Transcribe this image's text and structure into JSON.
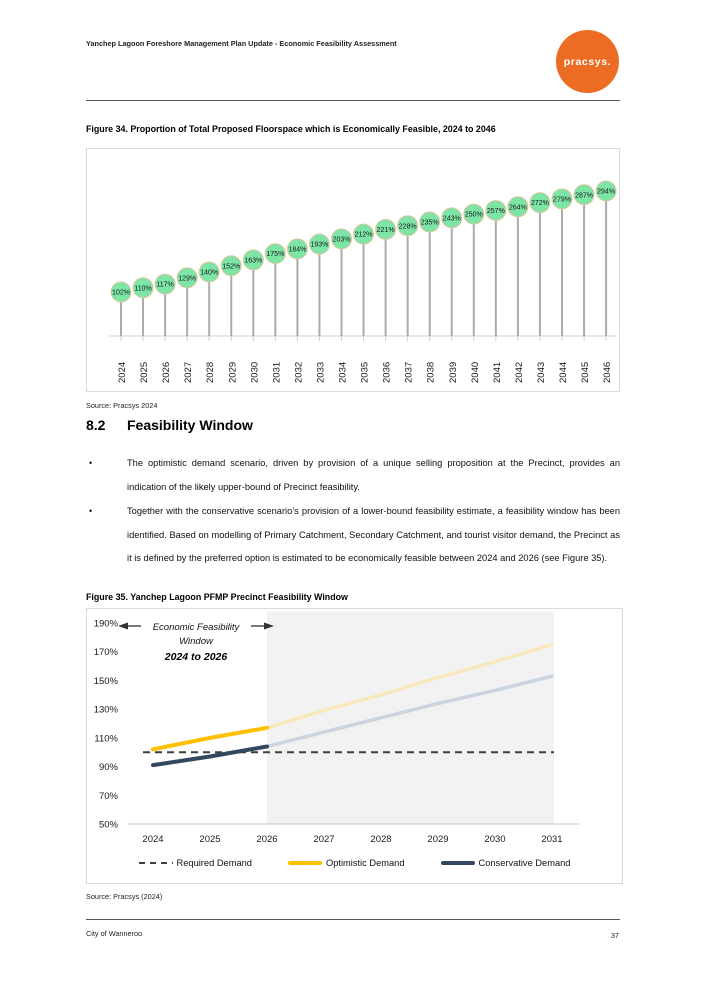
{
  "header": {
    "title": "Yanchep Lagoon Foreshore Management Plan Update - Economic Feasibility Assessment",
    "logo_text": "pracsys."
  },
  "figure34": {
    "caption": "Figure 34. Proportion of Total Proposed Floorspace which is Economically Feasible, 2024 to 2046",
    "source": "Source: Pracsys 2024"
  },
  "section": {
    "number": "8.2",
    "title": "Feasibility Window",
    "bullet_marker": "•",
    "bullets": [
      "The optimistic demand scenario, driven by provision of a unique selling proposition at the Precinct, provides an indication of the likely upper-bound of Precinct feasibility.",
      "Together with the conservative scenario’s provision of a lower-bound feasibility estimate, a feasibility window has been identified. Based on modelling of Primary Catchment, Secondary Catchment, and tourist visitor demand, the Precinct as it is defined by the preferred option is estimated to be economically feasible between 2024 and 2026 (see Figure 35)."
    ]
  },
  "figure35": {
    "caption": "Figure 35. Yanchep Lagoon PFMP Precinct Feasibility Window",
    "source": "Source: Pracsys (2024)"
  },
  "footer": {
    "left": "City of Wanneroo",
    "page": "37"
  },
  "colors": {
    "brand_orange": "#EC6C23",
    "marker_green": "#7DE5A5",
    "marker_border": "#E2C5A4",
    "stem_gray": "#ABABAB",
    "axis_gray": "#CFCFCF",
    "required_dash": "#3F3F3F",
    "optimistic_yellow": "#FFC000",
    "optimistic_faded": "#F8E8BC",
    "conservative_navy": "#33475F",
    "conservative_faded": "#CCD4DF",
    "window_shade": "#F2F2F2"
  },
  "chart_data": [
    {
      "name": "floorspace-lollipop",
      "type": "bar",
      "title": "Proportion of Total Proposed Floorspace which is Economically Feasible, 2024 to 2046",
      "categories": [
        2024,
        2025,
        2026,
        2027,
        2028,
        2029,
        2030,
        2031,
        2032,
        2033,
        2034,
        2035,
        2036,
        2037,
        2038,
        2039,
        2040,
        2041,
        2042,
        2043,
        2044,
        2045,
        2046
      ],
      "values": [
        102,
        110,
        117,
        129,
        140,
        152,
        163,
        175,
        184,
        193,
        203,
        212,
        221,
        228,
        235,
        243,
        250,
        257,
        264,
        272,
        279,
        287,
        294
      ],
      "unit": "%",
      "xlabel": "",
      "ylabel": "",
      "grid": false,
      "marker_color": "#7DE5A5",
      "marker_border": "#E2C5A4"
    },
    {
      "name": "feasibility-window",
      "type": "line",
      "title": "Yanchep Lagoon PFMP Precinct Feasibility Window",
      "x": [
        2024,
        2025,
        2026,
        2027,
        2028,
        2029,
        2030,
        2031
      ],
      "ylim": [
        50,
        190
      ],
      "yticks": [
        190,
        170,
        150,
        130,
        110,
        90,
        70,
        50
      ],
      "ytick_unit": "%",
      "grid": false,
      "legend_position": "bottom",
      "window": {
        "start": 2024,
        "end": 2026
      },
      "annotation": {
        "line1": "Economic Feasibility",
        "line2": "Window",
        "line3": "2024 to 2026"
      },
      "series": [
        {
          "name": "Required Demand",
          "style": "dashed",
          "color": "#3F3F3F",
          "values": [
            100,
            100,
            100,
            100,
            100,
            100,
            100,
            100
          ]
        },
        {
          "name": "Optimistic Demand",
          "style": "solid",
          "color": "#FFC000",
          "faded_color": "#F8E8BC",
          "values": [
            102,
            110,
            117,
            129,
            140,
            152,
            163,
            175
          ]
        },
        {
          "name": "Conservative Demand",
          "style": "solid",
          "color": "#33475F",
          "faded_color": "#CCD4DF",
          "values": [
            91,
            97,
            104,
            114,
            124,
            134,
            143,
            153
          ]
        }
      ]
    }
  ]
}
